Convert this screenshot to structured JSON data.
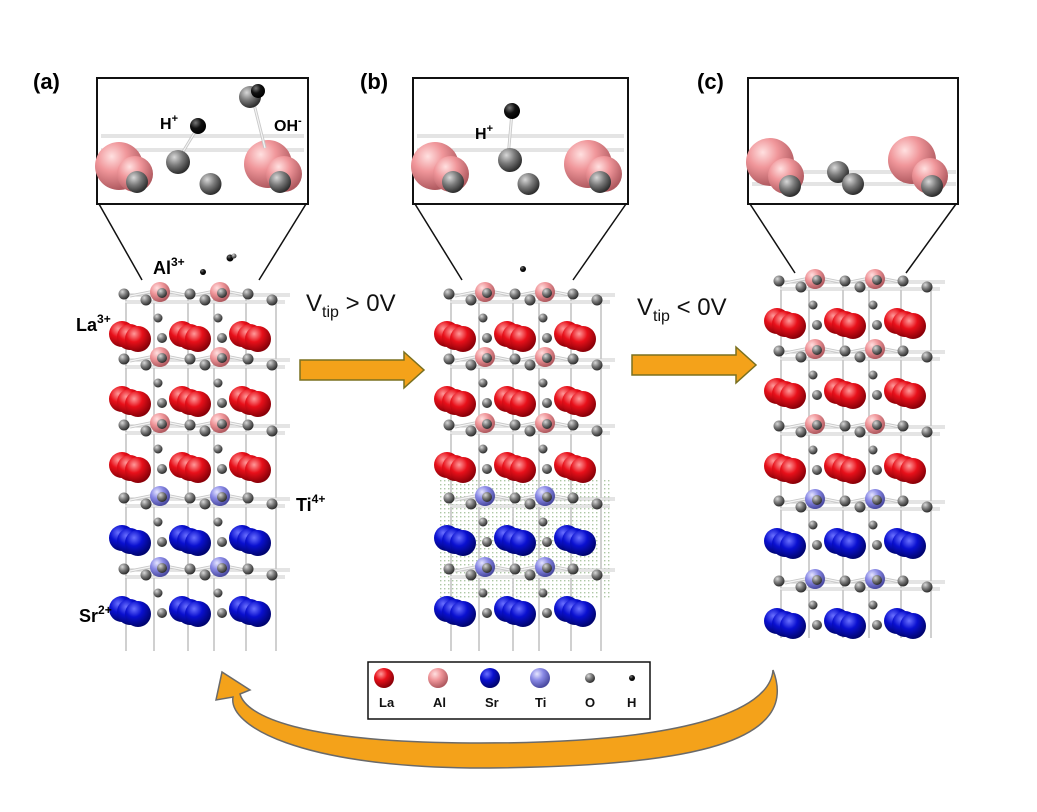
{
  "panels": [
    {
      "label": "(a)",
      "inset_labels": {
        "h": "H",
        "h_sup": "+",
        "oh": "OH",
        "oh_sup": "-"
      }
    },
    {
      "label": "(b)",
      "inset_labels": {
        "h": "H",
        "h_sup": "+"
      }
    },
    {
      "label": "(c)",
      "inset_labels": {}
    }
  ],
  "ion_labels": {
    "al": {
      "text": "Al",
      "sup": "3+",
      "color": "#f0a0a0"
    },
    "la": {
      "text": "La",
      "sup": "3+",
      "color": "#e8101a"
    },
    "ti": {
      "text": "Ti",
      "sup": "4+",
      "color": "#2f7a86"
    },
    "sr": {
      "text": "Sr",
      "sup": "2+",
      "color": "#1a1adc"
    }
  },
  "transitions": [
    {
      "v": "V",
      "sub": "tip",
      "relation": " > 0V"
    },
    {
      "v": "V",
      "sub": "tip",
      "relation": " < 0V"
    }
  ],
  "legend": [
    {
      "label": "La",
      "color": "#e8101a",
      "icon": "large-sphere"
    },
    {
      "label": "Al",
      "color": "#f0969a",
      "icon": "large-sphere"
    },
    {
      "label": "Sr",
      "color": "#0a10d0",
      "icon": "large-sphere"
    },
    {
      "label": "Ti",
      "color": "#8a8ae6",
      "icon": "large-sphere"
    },
    {
      "label": "O",
      "color": "#7a7a7a",
      "icon": "small-sphere"
    },
    {
      "label": "H",
      "color": "#111111",
      "icon": "tiny-sphere"
    }
  ],
  "colors": {
    "arrow": "#f4a21a",
    "la": "#e8101a",
    "al": "#f0969a",
    "sr": "#0a10d0",
    "ti": "#8a8ae6",
    "o": "#7a7a7a",
    "h": "#111111"
  }
}
